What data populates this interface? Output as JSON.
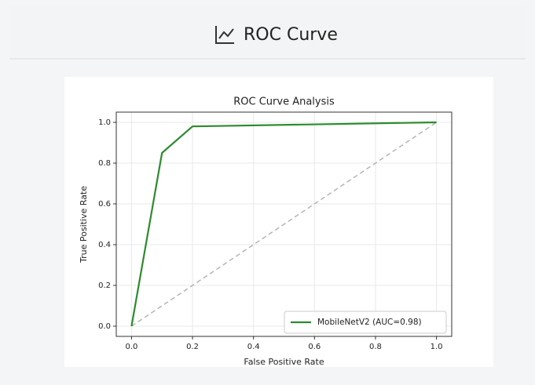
{
  "header": {
    "title": "ROC Curve"
  },
  "chart_data": {
    "type": "line",
    "title": "ROC Curve Analysis",
    "xlabel": "False Positive Rate",
    "ylabel": "True Positive Rate",
    "series": [
      {
        "name": "MobileNetV2 (AUC=0.98)",
        "color": "#2e8b2e",
        "x": [
          0,
          0.1,
          0.2,
          1.0
        ],
        "values": [
          0,
          0.85,
          0.98,
          1.0
        ]
      },
      {
        "color": "#b5b5b5",
        "dashed": true,
        "x": [
          0,
          1
        ],
        "values": [
          0,
          1
        ]
      }
    ],
    "xlim": [
      -0.05,
      1.05
    ],
    "ylim": [
      -0.05,
      1.05
    ],
    "xticks": [
      {
        "value": 0,
        "label": "0.0"
      },
      0.2,
      0.4,
      0.6,
      0.8,
      {
        "value": 1,
        "label": "1.0"
      }
    ],
    "yticks": [
      {
        "value": 0,
        "label": "0.0"
      },
      0.2,
      0.4,
      0.6,
      0.8,
      {
        "value": 1,
        "label": "1.0"
      }
    ],
    "grid": true,
    "legend": "lower right"
  }
}
